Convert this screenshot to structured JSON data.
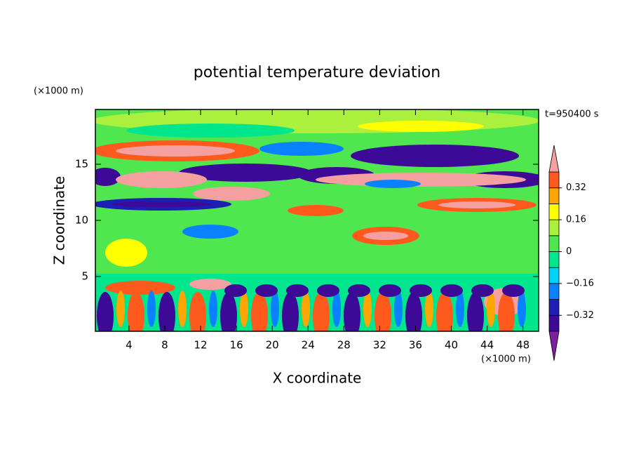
{
  "chart_data": {
    "type": "contour",
    "title": "potential temperature deviation",
    "xlabel": "X coordinate",
    "ylabel": "Z coordinate",
    "x_unit_label": "(×1000 m)",
    "y_unit_label": "(×1000 m)",
    "time_label": "t=950400 s",
    "xlim": [
      0.25,
      49.75
    ],
    "xticks": [
      4,
      8,
      12,
      16,
      20,
      24,
      28,
      32,
      36,
      40,
      44,
      48
    ],
    "ylim": [
      0.125,
      19.875
    ],
    "yticks": [
      5,
      10,
      15
    ],
    "colorbar": {
      "levels": [
        -0.4,
        -0.32,
        -0.24,
        -0.16,
        -0.08,
        0,
        0.08,
        0.16,
        0.24,
        0.32,
        0.4
      ],
      "colors": [
        "#7d1fa0",
        "#3c0a96",
        "#1e1eb4",
        "#0a82ff",
        "#00d2f5",
        "#00e68c",
        "#50e650",
        "#aaf03c",
        "#ffff00",
        "#ffa500",
        "#ff5a1e",
        "#f5a0a0"
      ],
      "ticks": [
        0.32,
        0.16,
        0,
        {
          "value": -0.16,
          "label": "−0.16"
        },
        {
          "value": -0.32,
          "label": "−0.32"
        }
      ]
    }
  }
}
